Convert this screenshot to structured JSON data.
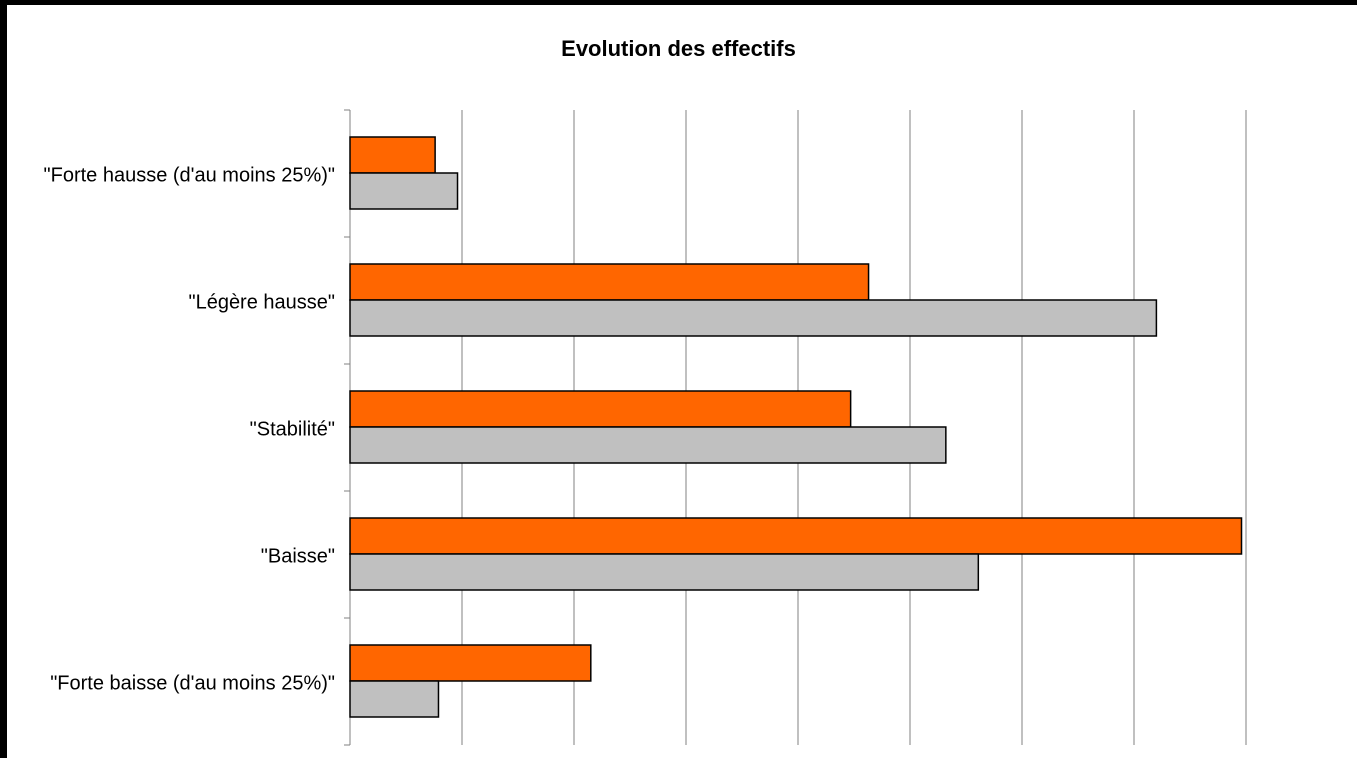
{
  "chart_data": {
    "type": "barh",
    "title": "Evolution des effectifs",
    "categories": [
      "\"Forte hausse (d'au moins 25%)\"",
      "\"Légère hausse\"",
      "\"Stabilité\"",
      "\"Baisse\"",
      "\"Forte baisse (d'au moins 25%)\""
    ],
    "series": [
      {
        "color": "#ff6600",
        "values": [
          0.76,
          4.63,
          4.47,
          7.96,
          2.15
        ]
      },
      {
        "color": "#c0c0c0",
        "values": [
          0.96,
          7.2,
          5.32,
          5.61,
          0.79
        ]
      }
    ],
    "xlim": [
      0,
      9
    ],
    "xticks": [
      0,
      1,
      2,
      3,
      4,
      5,
      6,
      7,
      8,
      9
    ],
    "grid": true
  }
}
